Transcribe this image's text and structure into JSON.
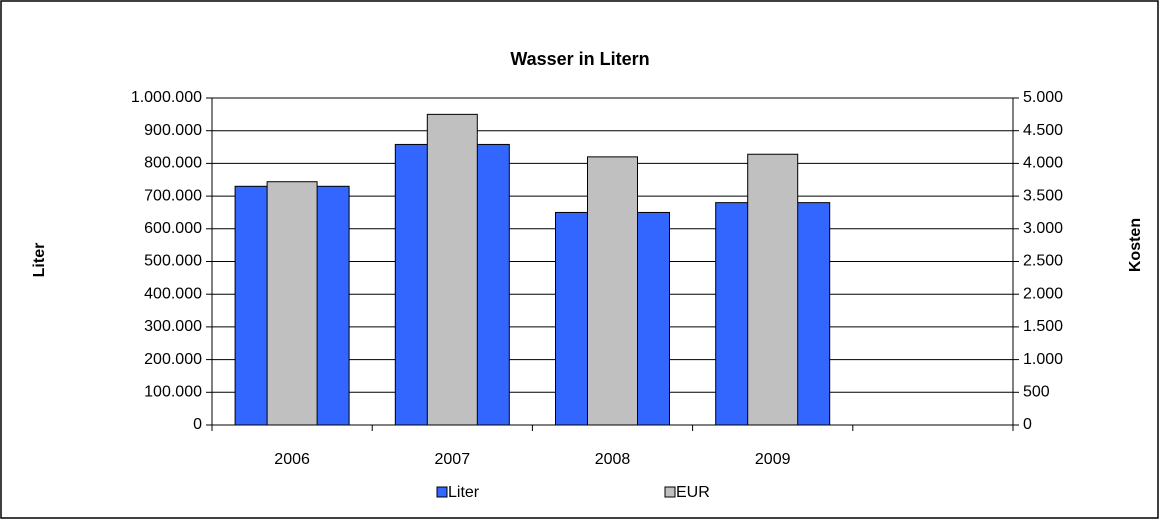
{
  "chart_data": {
    "type": "bar",
    "title": "Wasser in Litern",
    "ylabel": "Liter",
    "y2label": "Kosten",
    "categories": [
      "2006",
      "2007",
      "2008",
      "2009",
      null
    ],
    "series": [
      {
        "name": "Liter",
        "color": "#3366ff",
        "values": [
          730000,
          858000,
          650000,
          680000,
          null
        ]
      },
      {
        "name": "EUR",
        "color": "#c0c0c0",
        "axis": "y2",
        "values": [
          3720,
          4750,
          4100,
          4140,
          null
        ]
      }
    ],
    "ylim": [
      0,
      1000000
    ],
    "yticks": [
      0,
      {
        "value": 100000,
        "label": "100.000"
      },
      {
        "value": 200000,
        "label": "200.000"
      },
      {
        "value": 300000,
        "label": "300.000"
      },
      {
        "value": 400000,
        "label": "400.000"
      },
      {
        "value": 500000,
        "label": "500.000"
      },
      {
        "value": 600000,
        "label": "600.000"
      },
      {
        "value": 700000,
        "label": "700.000"
      },
      {
        "value": 800000,
        "label": "800.000"
      },
      {
        "value": 900000,
        "label": "900.000"
      },
      {
        "value": 1000000,
        "label": "1.000.000"
      }
    ],
    "y2lim": [
      0,
      5000
    ],
    "y2ticks": [
      0,
      500,
      {
        "value": 1000,
        "label": "1.000"
      },
      {
        "value": 1500,
        "label": "1.500"
      },
      {
        "value": 2000,
        "label": "2.000"
      },
      {
        "value": 2500,
        "label": "2.500"
      },
      {
        "value": 3000,
        "label": "3.000"
      },
      {
        "value": 3500,
        "label": "3.500"
      },
      {
        "value": 4000,
        "label": "4.000"
      },
      {
        "value": 4500,
        "label": "4.500"
      },
      {
        "value": 5000,
        "label": "5.000"
      }
    ],
    "grid": true,
    "legend": "bottom"
  }
}
